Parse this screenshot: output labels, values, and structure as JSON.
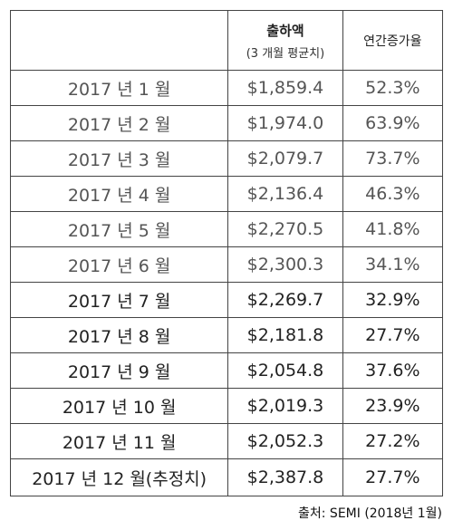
{
  "header": {
    "col1": "",
    "col2_title": "출하액",
    "col2_sub": "(3 개월  평균치)",
    "col3": "연간증가율"
  },
  "rows": [
    {
      "month": "2017 년 1 월",
      "value": "$1,859.4",
      "growth": "52.3%"
    },
    {
      "month": "2017 년 2 월",
      "value": "$1,974.0",
      "growth": "63.9%"
    },
    {
      "month": "2017 년 3 월",
      "value": "$2,079.7",
      "growth": "73.7%"
    },
    {
      "month": "2017 년 4 월",
      "value": "$2,136.4",
      "growth": "46.3%"
    },
    {
      "month": "2017 년 5 월",
      "value": "$2,270.5",
      "growth": "41.8%"
    },
    {
      "month": "2017 년 6 월",
      "value": "$2,300.3",
      "growth": "34.1%"
    },
    {
      "month": "2017 년 7 월",
      "value": "$2,269.7",
      "growth": "32.9%"
    },
    {
      "month": "2017 년 8 월",
      "value": "$2,181.8",
      "growth": "27.7%"
    },
    {
      "month": "2017 년 9 월",
      "value": "$2,054.8",
      "growth": "37.6%"
    },
    {
      "month": "2017 년 10 월",
      "value": "$2,019.3",
      "growth": "23.9%"
    },
    {
      "month": "2017 년 11 월",
      "value": "$2,052.3",
      "growth": "27.2%"
    },
    {
      "month": "2017 년 12 월(추정치)",
      "value": "$2,387.8",
      "growth": "27.7%"
    }
  ],
  "source": "출처: SEMI (2018년 1월)"
}
